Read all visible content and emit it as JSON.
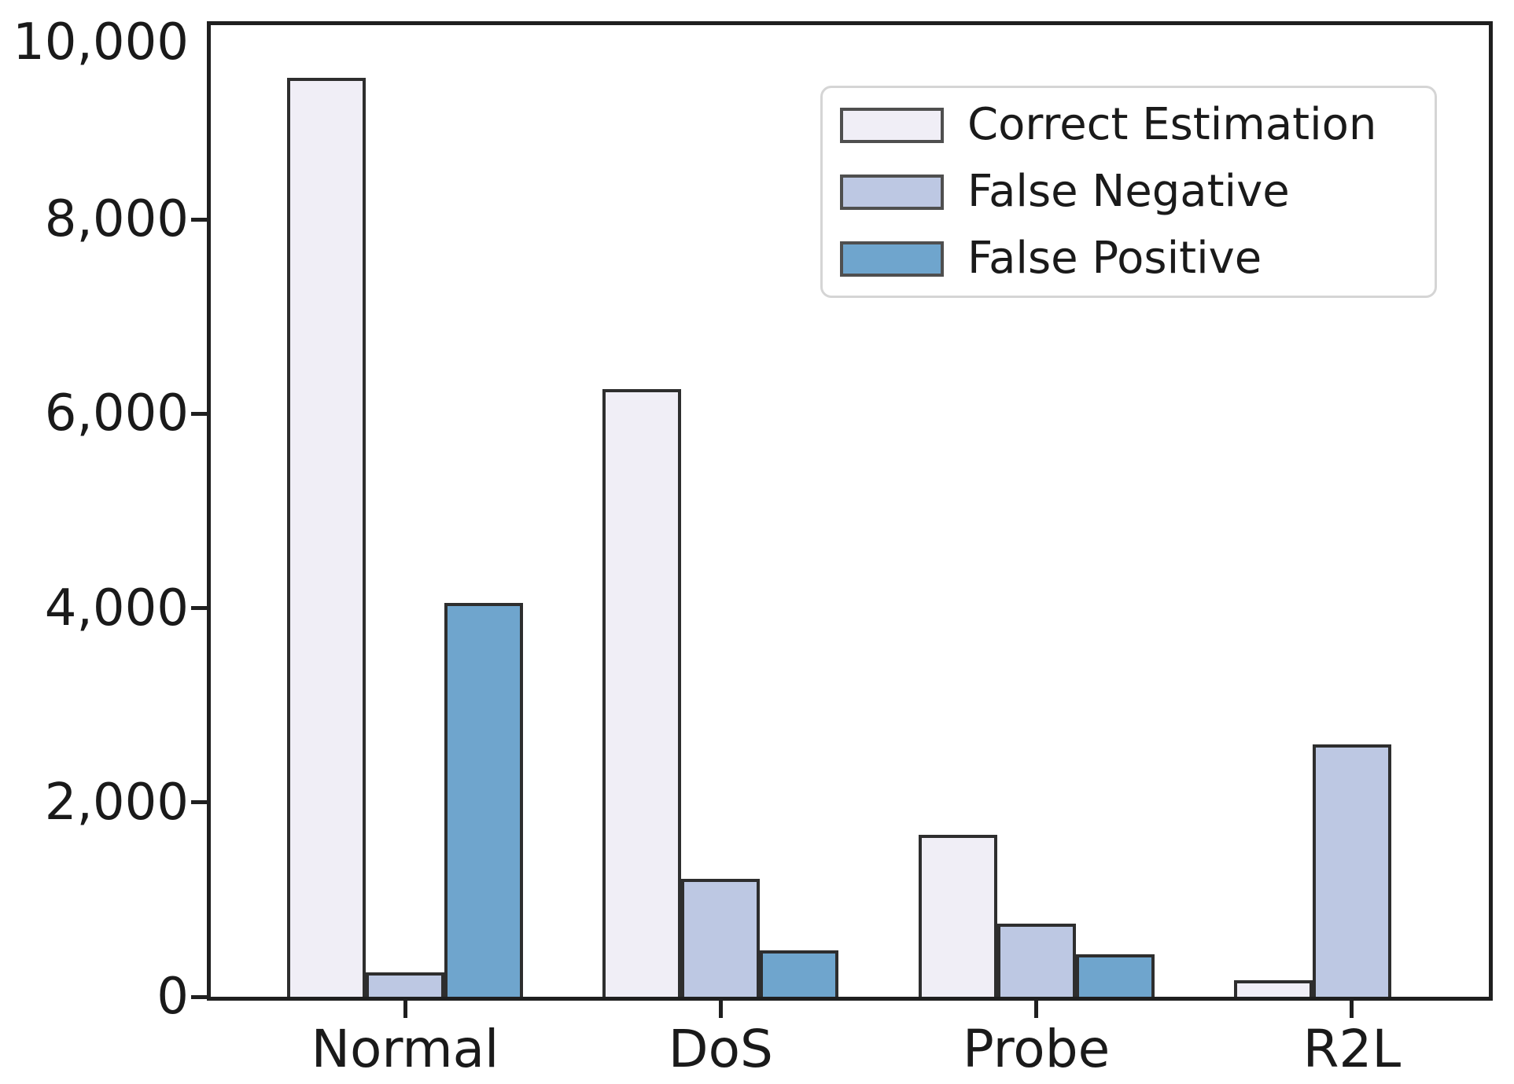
{
  "chart_data": {
    "type": "bar",
    "title": "",
    "xlabel": "",
    "ylabel": "",
    "grid": false,
    "legend_position": "upper-right-inside",
    "categories": [
      "Normal",
      "DoS",
      "Probe",
      "R2L"
    ],
    "series": [
      {
        "name": "Correct Estimation",
        "color": "#f0eef6",
        "values": [
          9460,
          6250,
          1670,
          170
        ]
      },
      {
        "name": "False Negative",
        "color": "#bdc8e3",
        "values": [
          250,
          1210,
          750,
          2600
        ]
      },
      {
        "name": "False Positive",
        "color": "#6fa5cd",
        "values": [
          4050,
          480,
          440,
          0
        ]
      }
    ],
    "bar_edge_color": "#2e2e2e",
    "axis_color": "#1f1f1f",
    "ylim": [
      0,
      10000
    ],
    "yticks": [
      {
        "value": 0,
        "label": "0"
      },
      {
        "value": 2000,
        "label": "2,000"
      },
      {
        "value": 4000,
        "label": "4,000"
      },
      {
        "value": 6000,
        "label": "6,000"
      },
      {
        "value": 8000,
        "label": "8,000"
      },
      {
        "value": 10000,
        "label": "10,000"
      }
    ]
  }
}
